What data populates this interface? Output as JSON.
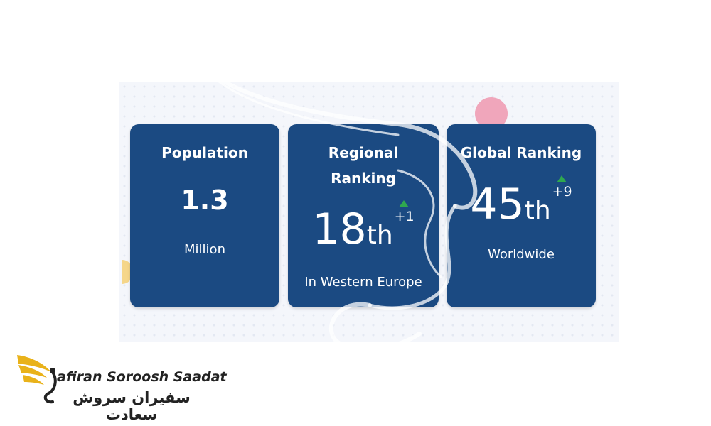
{
  "cards": [
    {
      "title": "Population",
      "value": "1.3",
      "caption": "Million"
    },
    {
      "title_line1": "Regional",
      "title_line2": "Ranking",
      "number": "18",
      "suffix": "th",
      "change": "+1",
      "caption": "In Western Europe"
    },
    {
      "title": "Global Ranking",
      "number": "45",
      "suffix": "th",
      "change": "+9",
      "caption": "Worldwide"
    }
  ],
  "brand": {
    "name_en": "afiran Soroosh Saadat",
    "name_fa": "سفیران سروش سعادت"
  },
  "colors": {
    "card": "#1b4a82",
    "trend_up": "#2fa84f",
    "logo": "#e9b21a",
    "background": "#f4f6fb"
  }
}
